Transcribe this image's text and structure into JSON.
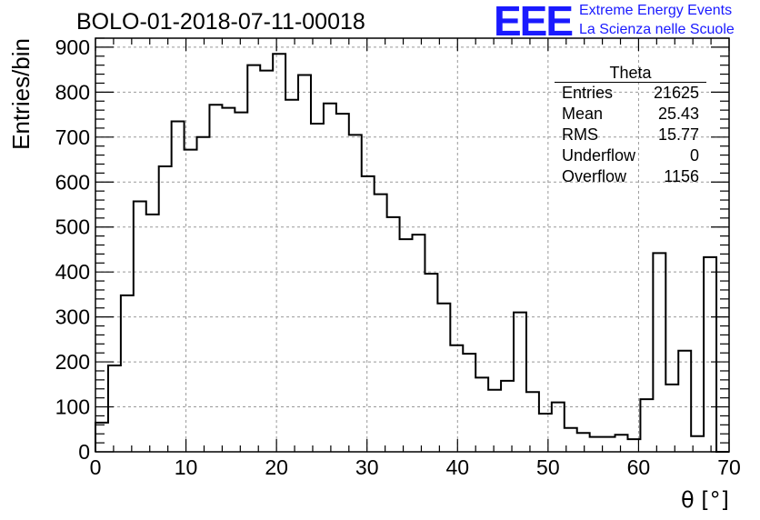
{
  "chart_data": {
    "type": "histogram",
    "title": "BOLO-01-2018-07-11-00018",
    "xlabel": "θ [°]",
    "ylabel": "Entries/bin",
    "xlim": [
      0,
      70
    ],
    "ylim": [
      0,
      920
    ],
    "x_ticks": [
      0,
      10,
      20,
      30,
      40,
      50,
      60,
      70
    ],
    "y_ticks": [
      0,
      100,
      200,
      300,
      400,
      500,
      600,
      700,
      800,
      900
    ],
    "grid": true,
    "bin_width": 1.4,
    "values": [
      65,
      192,
      348,
      557,
      528,
      635,
      735,
      672,
      700,
      772,
      765,
      755,
      860,
      848,
      885,
      783,
      838,
      730,
      775,
      752,
      705,
      613,
      573,
      522,
      473,
      483,
      396,
      330,
      237,
      218,
      165,
      138,
      158,
      310,
      133,
      85,
      110,
      53,
      42,
      33,
      33,
      38,
      28,
      117,
      442,
      150,
      225,
      35,
      433,
      0
    ],
    "stats_box": {
      "name": "Theta",
      "rows": [
        {
          "label": "Entries",
          "value": "21625"
        },
        {
          "label": "Mean",
          "value": "25.43"
        },
        {
          "label": "RMS",
          "value": "15.77"
        },
        {
          "label": "Underflow",
          "value": "0"
        },
        {
          "label": "Overflow",
          "value": "1156"
        }
      ]
    }
  },
  "logo": {
    "letters": "EEE",
    "line1": "Extreme Energy Events",
    "line2": "La Scienza nelle Scuole",
    "color": "#1a1aff"
  }
}
